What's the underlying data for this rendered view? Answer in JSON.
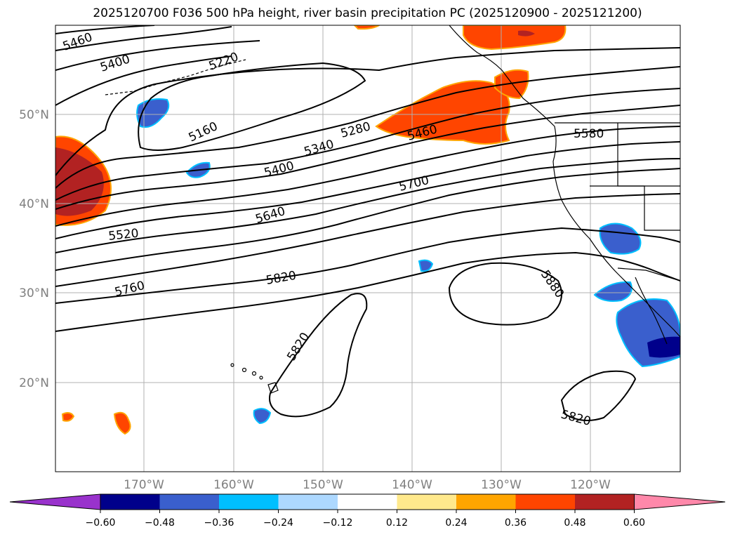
{
  "title": "2025120700 F036 500 hPa height, river basin precipitation PC (2025120900 - 2025121200)",
  "lat_labels": [
    "50°N",
    "40°N",
    "30°N",
    "20°N"
  ],
  "lon_labels": [
    "170°W",
    "160°W",
    "150°W",
    "140°W",
    "130°W",
    "120°W"
  ],
  "contour_labels": [
    "5460",
    "5400",
    "5220",
    "5160",
    "5280",
    "5460",
    "5340",
    "5400",
    "5580",
    "5700",
    "5640",
    "5520",
    "5760",
    "5820",
    "5880",
    "5820",
    "5820"
  ],
  "colorbar": {
    "ticks": [
      "−0.60",
      "−0.48",
      "−0.36",
      "−0.24",
      "−0.12",
      "0.12",
      "0.24",
      "0.36",
      "0.48",
      "0.60"
    ],
    "colors": [
      "#9932cc",
      "#00008b",
      "#3a5fcd",
      "#00bfff",
      "#add8ff",
      "#ffffff",
      "#ffe98c",
      "#ffa500",
      "#ff4500",
      "#b22222",
      "#ff88aa"
    ]
  },
  "colors": {
    "blue_dark": "#3a5fcd",
    "blue_navy": "#00008b",
    "cyan": "#00bfff",
    "orange": "#ff4500",
    "orange_light": "#ffa500",
    "yellow": "#ffe98c",
    "red_dark": "#b22222"
  }
}
